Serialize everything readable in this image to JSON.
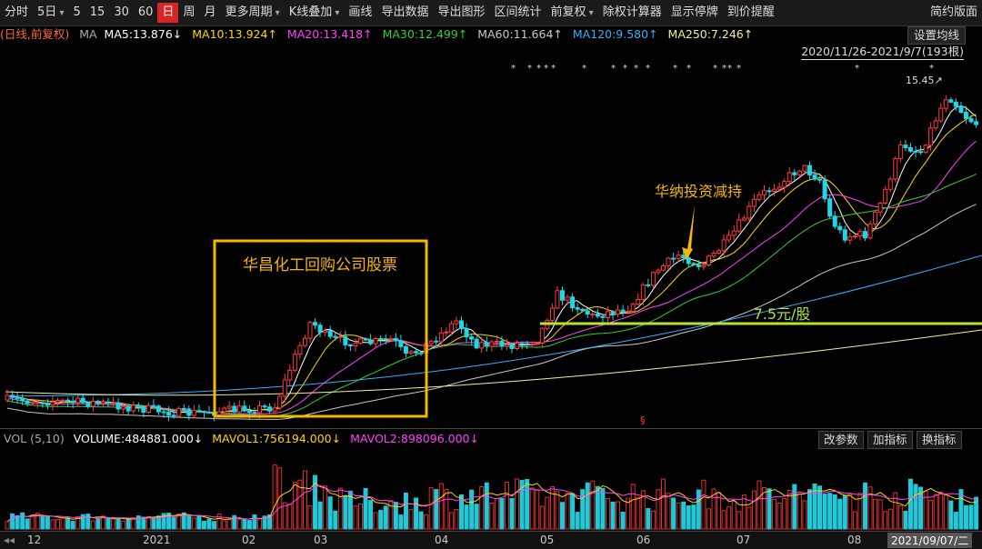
{
  "toolbar": {
    "items": [
      "分时",
      "5日",
      "5",
      "15",
      "30",
      "60",
      "日",
      "周",
      "月",
      "更多周期",
      "K线叠加",
      "画线",
      "导出数据",
      "导出图形",
      "区间统计",
      "前复权",
      "除权计算器",
      "显示停牌",
      "到价提醒",
      "简约版面"
    ],
    "active": "日"
  },
  "ma_bar": {
    "period": "(日线,前复权)",
    "label": "MA",
    "ma5": "MA5:13.876↓",
    "ma10": "MA10:13.924↑",
    "ma20": "MA20:13.418↑",
    "ma30": "MA30:12.499↑",
    "ma60": "MA60:11.664↑",
    "ma120": "MA120:9.580↑",
    "ma250": "MA250:7.246↑",
    "settings": "设置均线",
    "colors": {
      "period": "#ff6a3a",
      "ma5": "#ffffff",
      "ma10": "#ffd700",
      "ma20": "#ff40ff",
      "ma30": "#30d030",
      "ma60": "#c8c8c8",
      "ma120": "#30b0ff",
      "ma250": "#f0f0a0"
    }
  },
  "range_label": "2020/11/26-2021/9/7(193根)",
  "price_peak_label": "15.45↗",
  "annotations": {
    "box_text": "华昌化工回购公司股票",
    "arrow_text": "华纳投资减持",
    "line_text": "7.5元/股",
    "box_color": "#f5b800",
    "line_color": "#b8e03a"
  },
  "volume_bar": {
    "label": "VOL (5,10)",
    "volume": "VOLUME:484881.000↓",
    "mavol1": "MAVOL1:756194.000↓",
    "mavol2": "MAVOL2:898096.000↓",
    "buttons": [
      "改参数",
      "加指标",
      "换指标"
    ]
  },
  "time_axis": {
    "labels": [
      "12",
      "2021",
      "02",
      "03",
      "04",
      "05",
      "06",
      "07",
      "08"
    ],
    "current": "2021/09/07/二",
    "nav_icon": "◂◂"
  },
  "colors": {
    "up": "#ff3b3b",
    "down": "#1fd6e6",
    "vol_up": "#e03030",
    "vol_down": "#20c8d8"
  }
}
